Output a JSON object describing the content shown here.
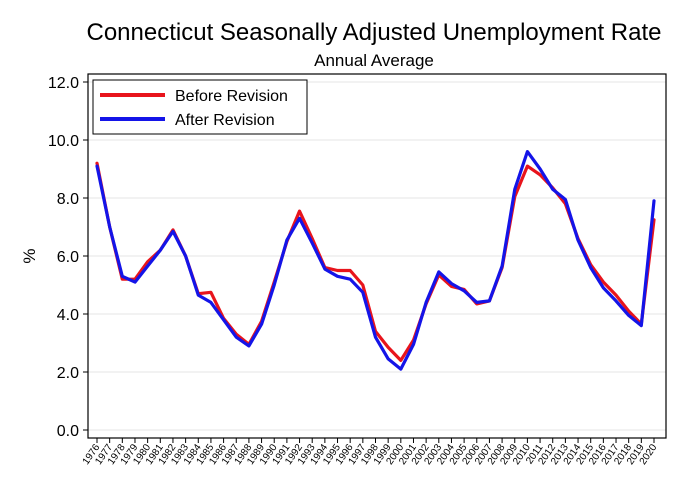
{
  "chart_data": {
    "type": "line",
    "title": "Connecticut Seasonally Adjusted Unemployment Rate",
    "subtitle": "Annual Average",
    "xlabel": "",
    "ylabel": "%",
    "ylim": [
      0,
      12
    ],
    "yticks": [
      "0.0",
      "2.0",
      "4.0",
      "6.0",
      "8.0",
      "10.0",
      "12.0"
    ],
    "grid": true,
    "legend_position": "top-left",
    "x": [
      "1976",
      "1977",
      "1978",
      "1979",
      "1980",
      "1981",
      "1982",
      "1983",
      "1984",
      "1985",
      "1986",
      "1987",
      "1988",
      "1989",
      "1990",
      "1991",
      "1992",
      "1993",
      "1994",
      "1995",
      "1996",
      "1997",
      "1998",
      "1999",
      "2000",
      "2001",
      "2002",
      "2003",
      "2004",
      "2005",
      "2006",
      "2007",
      "2008",
      "2009",
      "2010",
      "2011",
      "2012",
      "2013",
      "2014",
      "2015",
      "2016",
      "2017",
      "2018",
      "2019",
      "2020"
    ],
    "series": [
      {
        "name": "Before Revision",
        "color": "#e8141c",
        "values": [
          9.2,
          7.0,
          5.2,
          5.2,
          5.8,
          6.2,
          6.9,
          6.0,
          4.7,
          4.75,
          3.85,
          3.3,
          2.95,
          3.75,
          5.1,
          6.5,
          7.55,
          6.6,
          5.6,
          5.5,
          5.5,
          5.0,
          3.4,
          2.85,
          2.4,
          3.1,
          4.35,
          5.35,
          4.95,
          4.85,
          4.35,
          4.45,
          5.6,
          8.05,
          9.1,
          8.8,
          8.35,
          7.8,
          6.6,
          5.7,
          5.1,
          4.65,
          4.1,
          3.65,
          7.25
        ]
      },
      {
        "name": "After Revision",
        "color": "#1414e8",
        "values": [
          9.1,
          7.0,
          5.3,
          5.1,
          5.65,
          6.2,
          6.85,
          6.0,
          4.65,
          4.4,
          3.8,
          3.2,
          2.9,
          3.65,
          5.0,
          6.55,
          7.3,
          6.45,
          5.55,
          5.3,
          5.2,
          4.75,
          3.2,
          2.45,
          2.1,
          2.95,
          4.4,
          5.45,
          5.05,
          4.8,
          4.4,
          4.45,
          5.65,
          8.3,
          9.6,
          9.0,
          8.3,
          7.95,
          6.55,
          5.6,
          4.9,
          4.45,
          3.95,
          3.6,
          7.9
        ]
      }
    ]
  }
}
